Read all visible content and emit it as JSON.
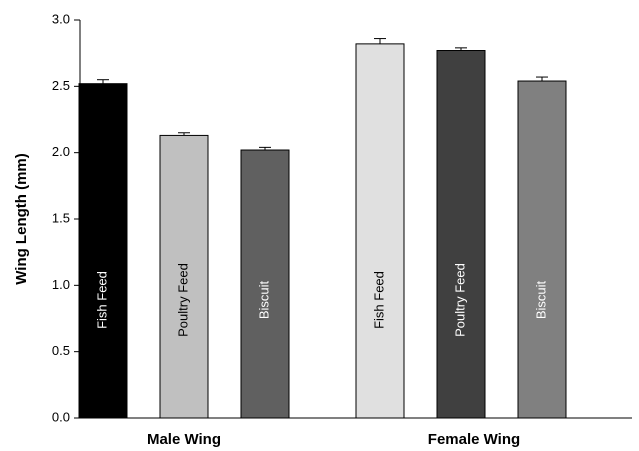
{
  "chart_data": {
    "type": "bar",
    "ylabel": "Wing Length (mm)",
    "categories": [
      "Male Wing",
      "Female Wing"
    ],
    "series": [
      {
        "name": "Fish Feed",
        "colors": [
          "#000000",
          "#e0e0e0"
        ],
        "values": [
          2.52,
          2.82
        ],
        "errors": [
          0.03,
          0.04
        ]
      },
      {
        "name": "Poultry Feed",
        "colors": [
          "#c0c0c0",
          "#404040"
        ],
        "values": [
          2.13,
          2.77
        ],
        "errors": [
          0.02,
          0.02
        ]
      },
      {
        "name": "Biscuit",
        "colors": [
          "#606060",
          "#808080"
        ],
        "values": [
          2.02,
          2.54
        ],
        "errors": [
          0.02,
          0.03
        ]
      }
    ],
    "ylim": [
      0,
      3
    ],
    "yticks": [
      {
        "value": 0,
        "label": "0.0"
      },
      {
        "value": 0.5,
        "label": "0.5"
      },
      {
        "value": 1,
        "label": "1.0"
      },
      {
        "value": 1.5,
        "label": "1.5"
      },
      {
        "value": 2,
        "label": "2.0"
      },
      {
        "value": 2.5,
        "label": "2.5"
      },
      {
        "value": 3,
        "label": "3.0"
      }
    ]
  }
}
